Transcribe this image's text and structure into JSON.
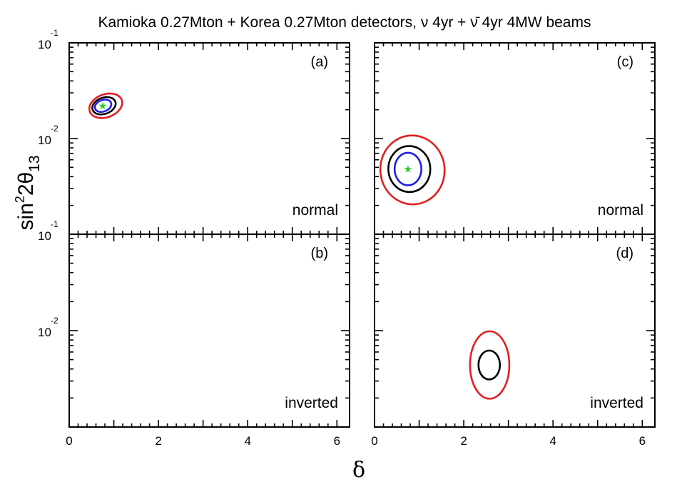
{
  "figure": {
    "title": "Kamioka 0.27Mton + Korea 0.27Mton detectors, ν 4yr + ν̄ 4yr 4MW beams",
    "xlabel": "δ",
    "ylabel_main": "sin",
    "ylabel_sup": "2",
    "ylabel_mid": "2θ",
    "ylabel_sub": "13"
  },
  "chart_data": {
    "type": "contour",
    "x_range": [
      0,
      6.283
    ],
    "y_scale": "log",
    "y_range_upper_panels": [
      0.001,
      0.1
    ],
    "y_range_lower_panels": [
      0.001,
      0.1
    ],
    "x_ticks": [
      "0",
      "2",
      "4",
      "6"
    ],
    "y_tick_labels": [
      {
        "base": "10",
        "exp": "-1"
      },
      {
        "base": "10",
        "exp": "-2"
      }
    ],
    "colors": {
      "red": "#e02020",
      "black": "#000000",
      "blue": "#1f1fe0",
      "green": "#22cc22"
    },
    "panels": [
      {
        "id": "a",
        "label": "(a)",
        "hierarchy": "normal",
        "col": 0,
        "row": 0,
        "true_point": {
          "delta": 0.75,
          "sin2": 0.022
        },
        "contours": [
          {
            "color": "red",
            "cx": 0.82,
            "cy": 0.022,
            "rx": 0.38,
            "ry_dec": 0.12,
            "tilt": -0.35
          },
          {
            "color": "black",
            "cx": 0.78,
            "cy": 0.022,
            "rx": 0.27,
            "ry_dec": 0.085,
            "tilt": -0.35
          },
          {
            "color": "blue",
            "cx": 0.76,
            "cy": 0.022,
            "rx": 0.19,
            "ry_dec": 0.06,
            "tilt": -0.35
          }
        ]
      },
      {
        "id": "c",
        "label": "(c)",
        "hierarchy": "normal",
        "col": 1,
        "row": 0,
        "true_point": {
          "delta": 0.75,
          "sin2": 0.0048
        },
        "contours": [
          {
            "color": "red",
            "cx": 0.85,
            "cy": 0.0047,
            "rx": 0.72,
            "ry_dec": 0.36,
            "tilt": -0.1
          },
          {
            "color": "black",
            "cx": 0.78,
            "cy": 0.0048,
            "rx": 0.47,
            "ry_dec": 0.24,
            "tilt": -0.05
          },
          {
            "color": "blue",
            "cx": 0.75,
            "cy": 0.0048,
            "rx": 0.3,
            "ry_dec": 0.17,
            "tilt": 0
          }
        ]
      },
      {
        "id": "b",
        "label": "(b)",
        "hierarchy": "inverted",
        "col": 0,
        "row": 1,
        "true_point": null,
        "contours": []
      },
      {
        "id": "d",
        "label": "(d)",
        "hierarchy": "inverted",
        "col": 1,
        "row": 1,
        "true_point": null,
        "contours": [
          {
            "color": "red",
            "cx": 2.58,
            "cy": 0.0044,
            "rx": 0.44,
            "ry_dec": 0.35,
            "tilt": 0
          },
          {
            "color": "black",
            "cx": 2.57,
            "cy": 0.0044,
            "rx": 0.24,
            "ry_dec": 0.15,
            "tilt": 0
          }
        ]
      }
    ]
  }
}
